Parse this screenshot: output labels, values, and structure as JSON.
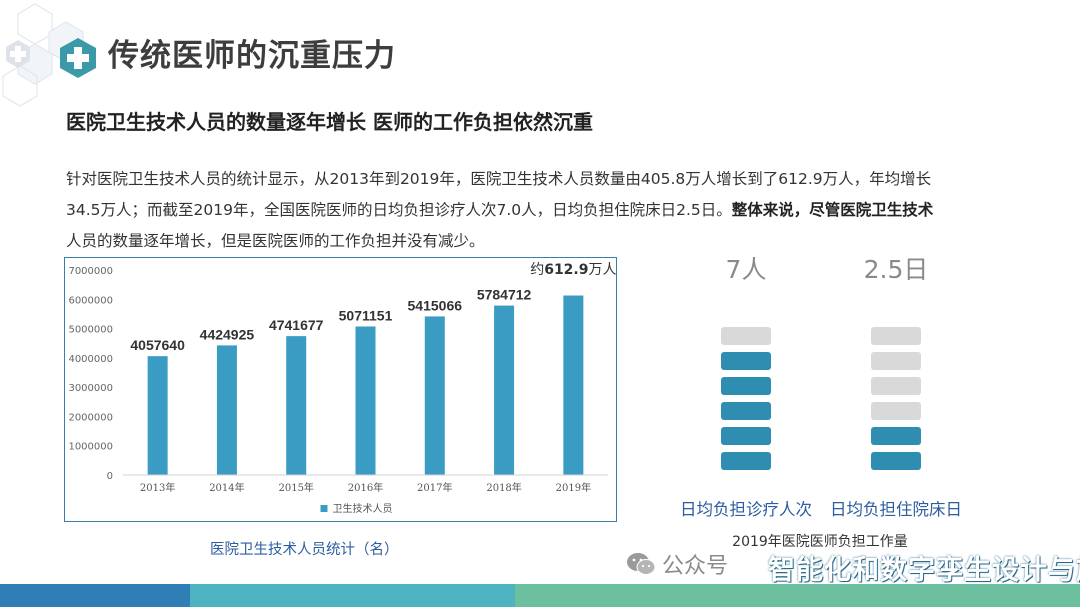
{
  "page": {
    "title": "传统医师的沉重压力",
    "subtitle": "医院卫生技术人员的数量逐年增长 医师的工作负担依然沉重",
    "paragraph_line1": "针对医院卫生技术人员的统计显示，从2013年到2019年，医院卫生技术人员数量由405.8万人增长到了612.9万人，年均增长",
    "paragraph_line2_normal": "34.5万人；而截至2019年，全国医院医师的日均负担诊疗人次7.0人，日均负担住院床日2.5日。",
    "paragraph_line2_bold": "整体来说，尽管医院卫生技术",
    "paragraph_line3": "人员的数量逐年增长，但是医院医师的工作负担并没有减少。"
  },
  "colors": {
    "bar": "#3a9cc2",
    "panel_blue": "#2e8db0",
    "panel_gray": "#d9d9d9",
    "caption": "#2b5da0"
  },
  "chart_data": [
    {
      "type": "bar",
      "categories": [
        "2013年",
        "2014年",
        "2015年",
        "2016年",
        "2017年",
        "2018年",
        "2019年"
      ],
      "series": [
        {
          "name": "卫生技术人员",
          "values": [
            4057640,
            4424925,
            4741677,
            5071151,
            5415066,
            5784712,
            6129000
          ]
        }
      ],
      "data_labels": [
        "4057640",
        "4424925",
        "4741677",
        "5071151",
        "5415066",
        "5784712",
        ""
      ],
      "annotation_prefix": "约",
      "annotation_value": "612.9",
      "annotation_suffix": "万人",
      "ylim": [
        0,
        7000000
      ],
      "yticks": [
        "0",
        "1000000",
        "2000000",
        "3000000",
        "4000000",
        "5000000",
        "6000000",
        "7000000"
      ],
      "legend_position": "bottom",
      "caption": "医院卫生技术人员统计（名）"
    },
    {
      "type": "bar",
      "title": "2019年医院医师负担工作量",
      "items": [
        {
          "value_label": "7人",
          "label": "日均负担诊疗人次",
          "value": 7.0,
          "segments": 6,
          "filled": 5
        },
        {
          "value_label": "2.5日",
          "label": "日均负担住院床日",
          "value": 2.5,
          "segments": 6,
          "filled": 2
        }
      ]
    }
  ],
  "watermark": {
    "text": "公众号",
    "overlay": "智能化和数字孪生设计与施工"
  }
}
